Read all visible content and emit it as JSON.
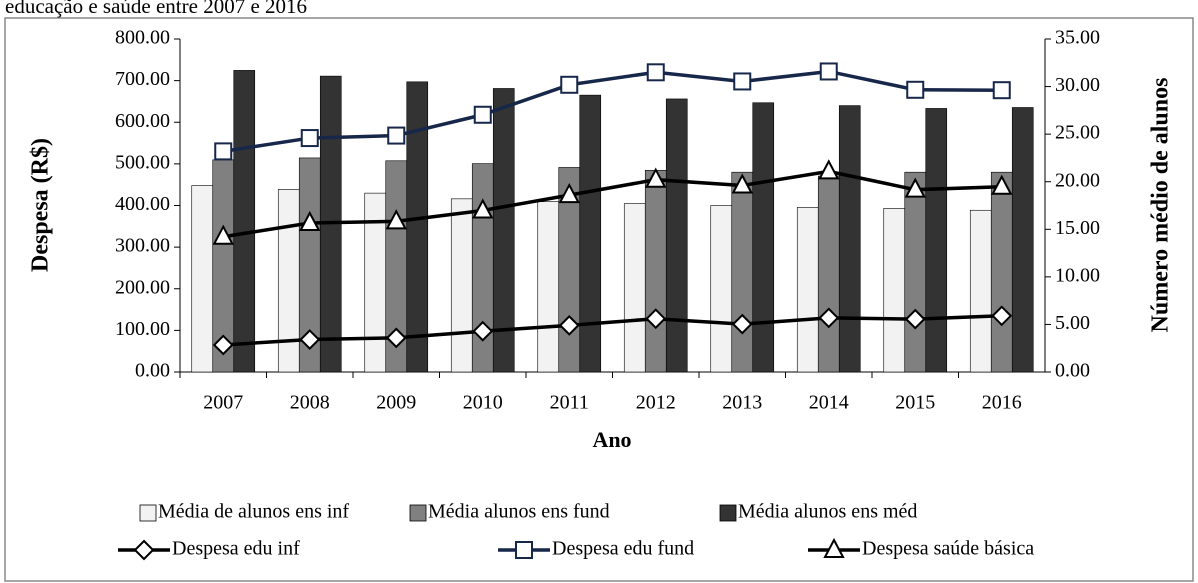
{
  "chart_data": {
    "type": "bar_line",
    "title": "educação e saúde entre 2007 e 2016",
    "x_label": "Ano",
    "y_label": "Despesa (R$)",
    "y2_label": "Número médio de alunos",
    "categories": [
      "2007",
      "2008",
      "2009",
      "2010",
      "2011",
      "2012",
      "2013",
      "2014",
      "2015",
      "2016"
    ],
    "ylim": [
      0,
      800
    ],
    "yticks": [
      {
        "value": 0,
        "label": "0.00"
      },
      {
        "value": 100,
        "label": "100.00"
      },
      {
        "value": 200,
        "label": "200.00"
      },
      {
        "value": 300,
        "label": "300.00"
      },
      {
        "value": 400,
        "label": "400.00"
      },
      {
        "value": 500,
        "label": "500.00"
      },
      {
        "value": 600,
        "label": "600.00"
      },
      {
        "value": 700,
        "label": "700.00"
      },
      {
        "value": 800,
        "label": "800.00"
      }
    ],
    "y2lim": [
      0,
      35
    ],
    "y2ticks": [
      {
        "value": 0,
        "label": "0.00"
      },
      {
        "value": 5,
        "label": "5.00"
      },
      {
        "value": 10,
        "label": "10.00"
      },
      {
        "value": 15,
        "label": "15.00"
      },
      {
        "value": 20,
        "label": "20.00"
      },
      {
        "value": 25,
        "label": "25.00"
      },
      {
        "value": 30,
        "label": "30.00"
      },
      {
        "value": 35,
        "label": "35.00"
      }
    ],
    "series": [
      {
        "name": "Média de alunos ens inf",
        "type": "bar",
        "axis": "y2",
        "color": "#f2f2f2",
        "values": [
          19.6,
          19.2,
          18.8,
          18.2,
          17.9,
          17.7,
          17.5,
          17.3,
          17.2,
          17.0
        ]
      },
      {
        "name": "Média alunos ens fund",
        "type": "bar",
        "axis": "y2",
        "color": "#808080",
        "values": [
          22.3,
          22.5,
          22.2,
          21.9,
          21.5,
          21.2,
          21.0,
          20.6,
          21.0,
          21.0
        ]
      },
      {
        "name": "Média alunos ens méd",
        "type": "bar",
        "axis": "y2",
        "color": "#333333",
        "values": [
          31.7,
          31.1,
          30.5,
          29.8,
          29.1,
          28.7,
          28.3,
          28.0,
          27.7,
          27.8
        ]
      },
      {
        "name": "Despesa edu inf",
        "type": "line",
        "marker": "diamond",
        "color": "#000000",
        "values": [
          65,
          78,
          82,
          98,
          112,
          128,
          115,
          130,
          127,
          135
        ]
      },
      {
        "name": "Despesa edu fund",
        "type": "line",
        "marker": "square",
        "color": "#17274a",
        "values": [
          530,
          562,
          568,
          618,
          690,
          720,
          698,
          722,
          678,
          677
        ]
      },
      {
        "name": "Despesa saúde básica",
        "type": "line",
        "marker": "triangle",
        "color": "#000000",
        "values": [
          325,
          358,
          362,
          388,
          425,
          462,
          448,
          482,
          438,
          445
        ]
      }
    ]
  }
}
